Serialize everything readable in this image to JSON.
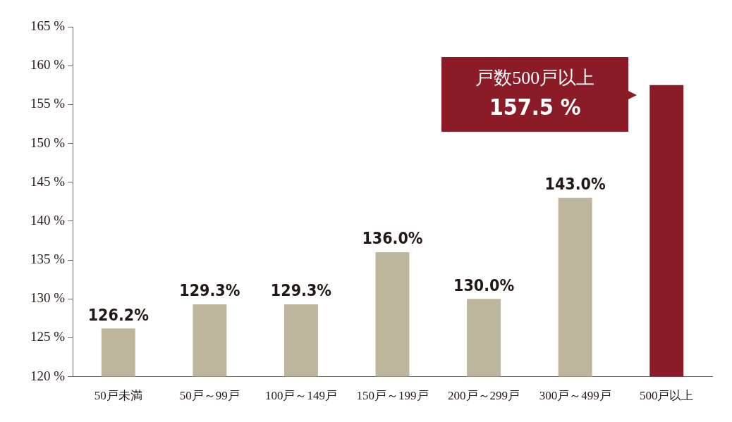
{
  "chart_data": {
    "type": "bar",
    "categories": [
      "50戸未満",
      "50戸～99戸",
      "100戸～149戸",
      "150戸～199戸",
      "200戸～299戸",
      "300戸～499戸",
      "500戸以上"
    ],
    "values": [
      126.2,
      129.3,
      129.3,
      136.0,
      130.0,
      143.0,
      157.5
    ],
    "colors": [
      "#beb69c",
      "#beb69c",
      "#beb69c",
      "#beb69c",
      "#beb69c",
      "#beb69c",
      "#8b1c27"
    ],
    "value_labels": [
      "126.2%",
      "129.3%",
      "129.3%",
      "136.0%",
      "130.0%",
      "143.0%",
      null
    ],
    "annotations": [
      "戸数500戸以上\n157.5 %"
    ],
    "ylim": [
      120,
      165
    ],
    "yticks": [
      {
        "value": 120,
        "label": "120 %"
      },
      {
        "value": 125,
        "label": "125 %"
      },
      {
        "value": 130,
        "label": "130 %"
      },
      {
        "value": 135,
        "label": "135 %"
      },
      {
        "value": 140,
        "label": "140 %"
      },
      {
        "value": 145,
        "label": "145 %"
      },
      {
        "value": 150,
        "label": "150 %"
      },
      {
        "value": 155,
        "label": "155 %"
      },
      {
        "value": 160,
        "label": "160 %"
      },
      {
        "value": 165,
        "label": "165 %"
      }
    ],
    "grid": false,
    "legend": false
  }
}
